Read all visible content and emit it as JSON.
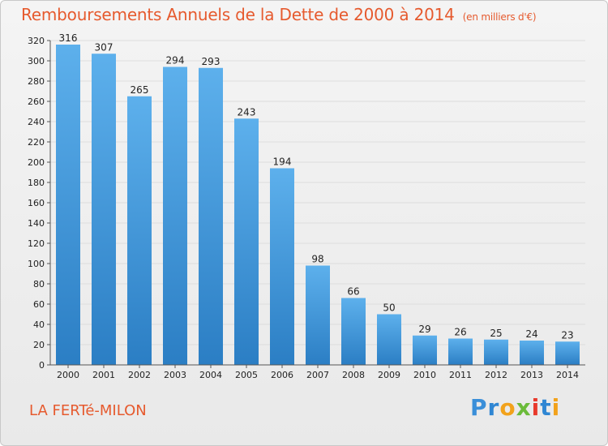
{
  "title": "Remboursements Annuels de la Dette de 2000 à 2014",
  "unit": "(en milliers d'€)",
  "location": "LA FERTé-MILON",
  "logo": {
    "letters": [
      "P",
      "r",
      "o",
      "x",
      "i",
      "t",
      "i"
    ],
    "colors": [
      "#3a8fd9",
      "#2f86d3",
      "#f2a21b",
      "#6bbb3a",
      "#e8392c",
      "#2f86d3",
      "#f2a21b"
    ]
  },
  "colors": {
    "bar_top": "#5db0ec",
    "bar_bottom": "#2b7ec4",
    "title": "#e65a2e",
    "grid": "#dddddd"
  },
  "chart_data": {
    "type": "bar",
    "categories": [
      "2000",
      "2001",
      "2002",
      "2003",
      "2004",
      "2005",
      "2006",
      "2007",
      "2008",
      "2009",
      "2010",
      "2011",
      "2012",
      "2013",
      "2014"
    ],
    "values": [
      316,
      307,
      265,
      294,
      293,
      243,
      194,
      98,
      66,
      50,
      29,
      26,
      25,
      24,
      23
    ],
    "ylim": [
      0,
      320
    ],
    "yticks": [
      0,
      20,
      40,
      60,
      80,
      100,
      120,
      140,
      160,
      180,
      200,
      220,
      240,
      260,
      280,
      300,
      320
    ],
    "grid": true
  }
}
